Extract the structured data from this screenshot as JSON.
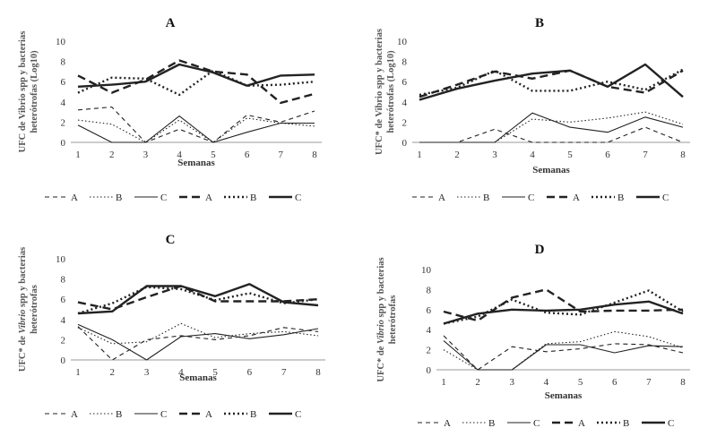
{
  "chart_data": [
    {
      "type": "line",
      "title": "A",
      "xlabel": "Semanas",
      "ylabel_lines": [
        "UFC de Vibrio spp y bacterias",
        "heterótrofas (Log10)"
      ],
      "x": [
        1,
        2,
        3,
        4,
        5,
        6,
        7,
        8
      ],
      "ylim": [
        0,
        10
      ],
      "yticks": [
        0,
        2,
        4,
        6,
        8,
        10
      ],
      "grid": false,
      "legend_position": "bottom",
      "series": [
        {
          "name": "A",
          "style": "thin-dash",
          "values": [
            3.2,
            3.5,
            0.0,
            1.3,
            0.0,
            2.7,
            2.0,
            3.1
          ]
        },
        {
          "name": "B",
          "style": "thin-dot",
          "values": [
            2.2,
            1.8,
            0.0,
            2.2,
            0.0,
            2.4,
            1.9,
            1.6
          ]
        },
        {
          "name": "C",
          "style": "thin-solid",
          "values": [
            1.7,
            0.0,
            0.0,
            2.6,
            0.0,
            1.0,
            1.9,
            1.9
          ]
        },
        {
          "name": "A",
          "style": "thick-dash",
          "values": [
            6.6,
            4.9,
            6.2,
            8.1,
            7.0,
            6.7,
            3.9,
            4.8
          ]
        },
        {
          "name": "B",
          "style": "thick-dot",
          "values": [
            4.9,
            6.4,
            6.3,
            4.7,
            7.1,
            5.6,
            5.7,
            6.0
          ]
        },
        {
          "name": "C",
          "style": "thick-solid",
          "values": [
            5.5,
            5.7,
            6.0,
            7.7,
            6.9,
            5.6,
            6.6,
            6.7
          ]
        }
      ]
    },
    {
      "type": "line",
      "title": "B",
      "xlabel": "Semanas",
      "ylabel_lines": [
        "UFC* de Vibrio spp y bacterias",
        "heterótrofas (Log10)"
      ],
      "x": [
        1,
        2,
        3,
        4,
        5,
        6,
        7,
        8
      ],
      "ylim": [
        0,
        10
      ],
      "yticks": [
        0,
        2,
        4,
        6,
        8,
        10
      ],
      "grid": false,
      "legend_position": "bottom",
      "series": [
        {
          "name": "A",
          "style": "thin-dash",
          "values": [
            0.0,
            0.0,
            1.3,
            0.0,
            0.0,
            0.0,
            1.5,
            0.0
          ]
        },
        {
          "name": "B",
          "style": "thin-dot",
          "values": [
            0.0,
            0.0,
            0.0,
            2.3,
            2.0,
            2.4,
            3.0,
            1.8
          ]
        },
        {
          "name": "C",
          "style": "thin-solid",
          "values": [
            0.0,
            0.0,
            0.0,
            2.9,
            1.5,
            1.0,
            2.5,
            1.5
          ]
        },
        {
          "name": "A",
          "style": "thick-dash",
          "values": [
            4.5,
            5.7,
            7.0,
            6.3,
            7.1,
            5.5,
            4.9,
            7.1
          ]
        },
        {
          "name": "B",
          "style": "thick-dot",
          "values": [
            4.7,
            5.4,
            7.1,
            5.1,
            5.1,
            6.0,
            5.2,
            7.2
          ]
        },
        {
          "name": "C",
          "style": "thick-solid",
          "values": [
            4.2,
            5.3,
            6.1,
            6.8,
            7.1,
            5.5,
            7.7,
            4.5
          ]
        }
      ]
    },
    {
      "type": "line",
      "title": "C",
      "xlabel": "Semanas",
      "ylabel_lines": [
        "UFC* de Vibrio spp y bacterias",
        "heterótrofas"
      ],
      "x": [
        1,
        2,
        3,
        4,
        5,
        6,
        7,
        8
      ],
      "ylim": [
        0,
        10
      ],
      "yticks": [
        0,
        2,
        4,
        6,
        8,
        10
      ],
      "grid": false,
      "legend_position": "bottom",
      "series": [
        {
          "name": "A",
          "style": "thin-dash",
          "values": [
            3.3,
            0.0,
            2.0,
            2.4,
            2.0,
            2.4,
            3.2,
            2.8
          ]
        },
        {
          "name": "B",
          "style": "thin-dot",
          "values": [
            3.2,
            1.6,
            1.8,
            3.6,
            2.2,
            2.6,
            2.8,
            2.4
          ]
        },
        {
          "name": "C",
          "style": "thin-solid",
          "values": [
            3.5,
            2.0,
            0.0,
            2.3,
            2.6,
            2.1,
            2.5,
            3.1
          ]
        },
        {
          "name": "A",
          "style": "thick-dash",
          "values": [
            5.7,
            5.0,
            6.2,
            7.3,
            5.8,
            5.8,
            5.8,
            6.0
          ]
        },
        {
          "name": "B",
          "style": "thick-dot",
          "values": [
            4.6,
            5.6,
            7.2,
            7.0,
            5.9,
            6.6,
            5.6,
            6.0
          ]
        },
        {
          "name": "C",
          "style": "thick-solid",
          "values": [
            4.6,
            4.8,
            7.3,
            7.3,
            6.3,
            7.5,
            5.7,
            5.4
          ]
        }
      ]
    },
    {
      "type": "line",
      "title": "D",
      "xlabel": "Semanas",
      "ylabel_lines": [
        "UFC* de Vibrio spp y bacterias",
        "heterótrofas"
      ],
      "x": [
        1,
        2,
        3,
        4,
        5,
        6,
        7,
        8
      ],
      "ylim": [
        0,
        10
      ],
      "yticks": [
        0,
        2,
        4,
        6,
        8,
        10
      ],
      "grid": false,
      "legend_position": "bottom",
      "series": [
        {
          "name": "A",
          "style": "thin-dash",
          "values": [
            3.4,
            0.0,
            2.3,
            1.8,
            2.1,
            2.6,
            2.5,
            1.7
          ]
        },
        {
          "name": "B",
          "style": "thin-dot",
          "values": [
            2.0,
            0.0,
            0.0,
            2.6,
            2.8,
            3.8,
            3.3,
            2.2
          ]
        },
        {
          "name": "C",
          "style": "thin-solid",
          "values": [
            2.9,
            0.0,
            0.0,
            2.5,
            2.5,
            1.7,
            2.4,
            2.3
          ]
        },
        {
          "name": "A",
          "style": "thick-dash",
          "values": [
            5.8,
            4.9,
            7.2,
            8.0,
            5.8,
            5.9,
            5.9,
            6.0
          ]
        },
        {
          "name": "B",
          "style": "thick-dot",
          "values": [
            4.6,
            5.3,
            7.0,
            5.7,
            5.5,
            6.7,
            7.9,
            5.8
          ]
        },
        {
          "name": "C",
          "style": "thick-solid",
          "values": [
            4.6,
            5.6,
            6.0,
            5.9,
            6.0,
            6.5,
            6.8,
            5.6
          ]
        }
      ]
    }
  ],
  "line_color": "#222222"
}
